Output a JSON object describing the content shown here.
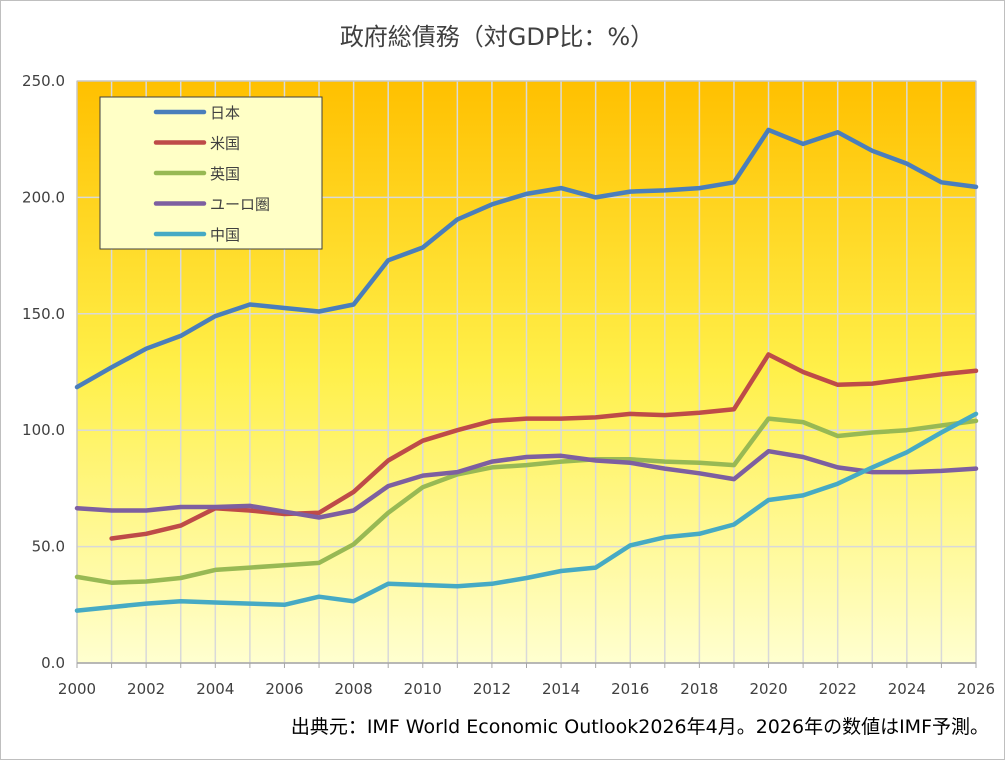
{
  "chart_data": {
    "type": "line",
    "title": "政府総債務（対GDP比：%）",
    "xlabel": "",
    "ylabel": "",
    "x": [
      2000,
      2001,
      2002,
      2003,
      2004,
      2005,
      2006,
      2007,
      2008,
      2009,
      2010,
      2011,
      2012,
      2013,
      2014,
      2015,
      2016,
      2017,
      2018,
      2019,
      2020,
      2021,
      2022,
      2023,
      2024,
      2025,
      2026
    ],
    "x_ticks": [
      "2000",
      "2002",
      "2004",
      "2006",
      "2008",
      "2010",
      "2012",
      "2014",
      "2016",
      "2018",
      "2020",
      "2022",
      "2024",
      "2026"
    ],
    "ylim": [
      0,
      250
    ],
    "y_ticks": [
      "0.0",
      "50.0",
      "100.0",
      "150.0",
      "200.0",
      "250.0"
    ],
    "grid": "vertical and horizontal",
    "legend_position": "top-left",
    "background": "gradient yellow-orange (top) to pale yellow (bottom)",
    "series": [
      {
        "name": "日本",
        "color": "#4a7ebb",
        "values": [
          118.5,
          127,
          135,
          140.5,
          149,
          154,
          152.5,
          151,
          154,
          173,
          178.5,
          190.5,
          197,
          201.5,
          204,
          200,
          202.5,
          203,
          204,
          206.5,
          229,
          223,
          228,
          220,
          214.5,
          206.5,
          204.5
        ]
      },
      {
        "name": "米国",
        "color": "#be4b48",
        "values": [
          null,
          53.5,
          55.5,
          59,
          66.5,
          65.5,
          64,
          64.5,
          73.5,
          87,
          95.5,
          100,
          104,
          105,
          105,
          105.5,
          107,
          106.5,
          107.5,
          109,
          132.5,
          125,
          119.5,
          120,
          122,
          124,
          125.5
        ]
      },
      {
        "name": "英国",
        "color": "#98b954",
        "values": [
          37,
          34.5,
          35,
          36.5,
          40,
          41,
          42,
          43,
          51,
          64.5,
          75.5,
          81,
          84,
          85,
          86.5,
          87.5,
          87.5,
          86.5,
          86,
          85,
          105,
          103.5,
          97.5,
          99,
          100,
          102,
          104
        ]
      },
      {
        "name": "ユーロ圏",
        "color": "#7d5fa0",
        "values": [
          66.5,
          65.5,
          65.5,
          67,
          67,
          67.5,
          65,
          62.5,
          65.5,
          76,
          80.5,
          82,
          86.5,
          88.5,
          89,
          87,
          86,
          83.5,
          81.5,
          79,
          91,
          88.5,
          84,
          82,
          82,
          82.5,
          83.5
        ]
      },
      {
        "name": "中国",
        "color": "#46aac4",
        "values": [
          22.5,
          24,
          25.5,
          26.5,
          26,
          25.5,
          25,
          28.5,
          26.5,
          34,
          33.5,
          33,
          34,
          36.5,
          39.5,
          41,
          50.5,
          54,
          55.5,
          59.5,
          70,
          72,
          77,
          84,
          90.5,
          99,
          107
        ]
      }
    ]
  },
  "footnote": "出典元：IMF World Economic Outlook2026年4月。2026年の数値はIMF予測。"
}
